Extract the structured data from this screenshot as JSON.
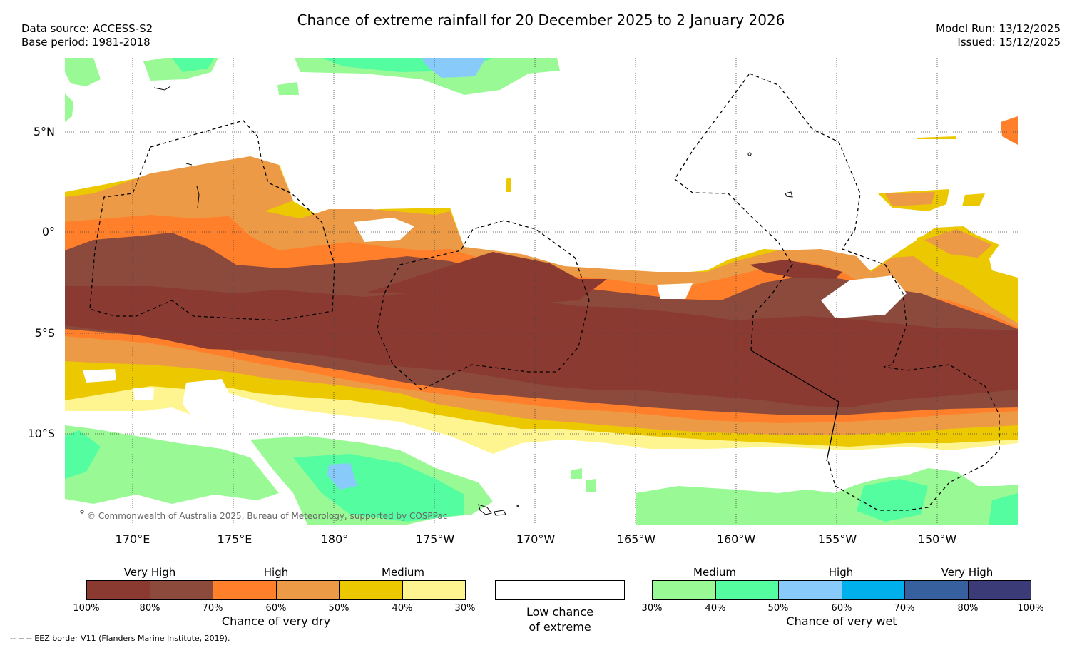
{
  "header": {
    "title": "Chance of extreme rainfall for 20 December 2025 to 2 January 2026",
    "data_source": "Data source: ACCESS-S2",
    "base_period": "Base period: 1981-2018",
    "model_run": "Model Run: 13/12/2025",
    "issued": "Issued: 15/12/2025"
  },
  "map": {
    "lat_labels": [
      "5°N",
      "0°",
      "5°S",
      "10°S"
    ],
    "lon_labels": [
      "170°E",
      "175°E",
      "180°",
      "175°W",
      "170°W",
      "165°W",
      "160°W",
      "155°W",
      "150°W"
    ],
    "copyright": "© Commonwealth of Australia 2025, Bureau of Meteorology, supported by COSPPac",
    "eez_note": "--  --  -- EEZ border V11 (Flanders Marine Institute, 2019)."
  },
  "legend": {
    "dry": {
      "title": "Chance of very dry",
      "categories": [
        "Very High",
        "High",
        "Medium"
      ],
      "ticks": [
        "100%",
        "80%",
        "70%",
        "60%",
        "50%",
        "40%",
        "30%"
      ],
      "colors": [
        "#8b3a32",
        "#8c4a3c",
        "#ff7f2a",
        "#ec9a45",
        "#ecc800",
        "#fff590"
      ]
    },
    "neutral": {
      "line1": "Low chance",
      "line2": "of extreme"
    },
    "wet": {
      "title": "Chance of very wet",
      "categories": [
        "Medium",
        "High",
        "Very High"
      ],
      "ticks": [
        "30%",
        "40%",
        "50%",
        "60%",
        "70%",
        "80%",
        "100%"
      ],
      "colors": [
        "#99f995",
        "#55fda1",
        "#88cbfb",
        "#00b0ed",
        "#36609e",
        "#3b3b77"
      ]
    }
  }
}
